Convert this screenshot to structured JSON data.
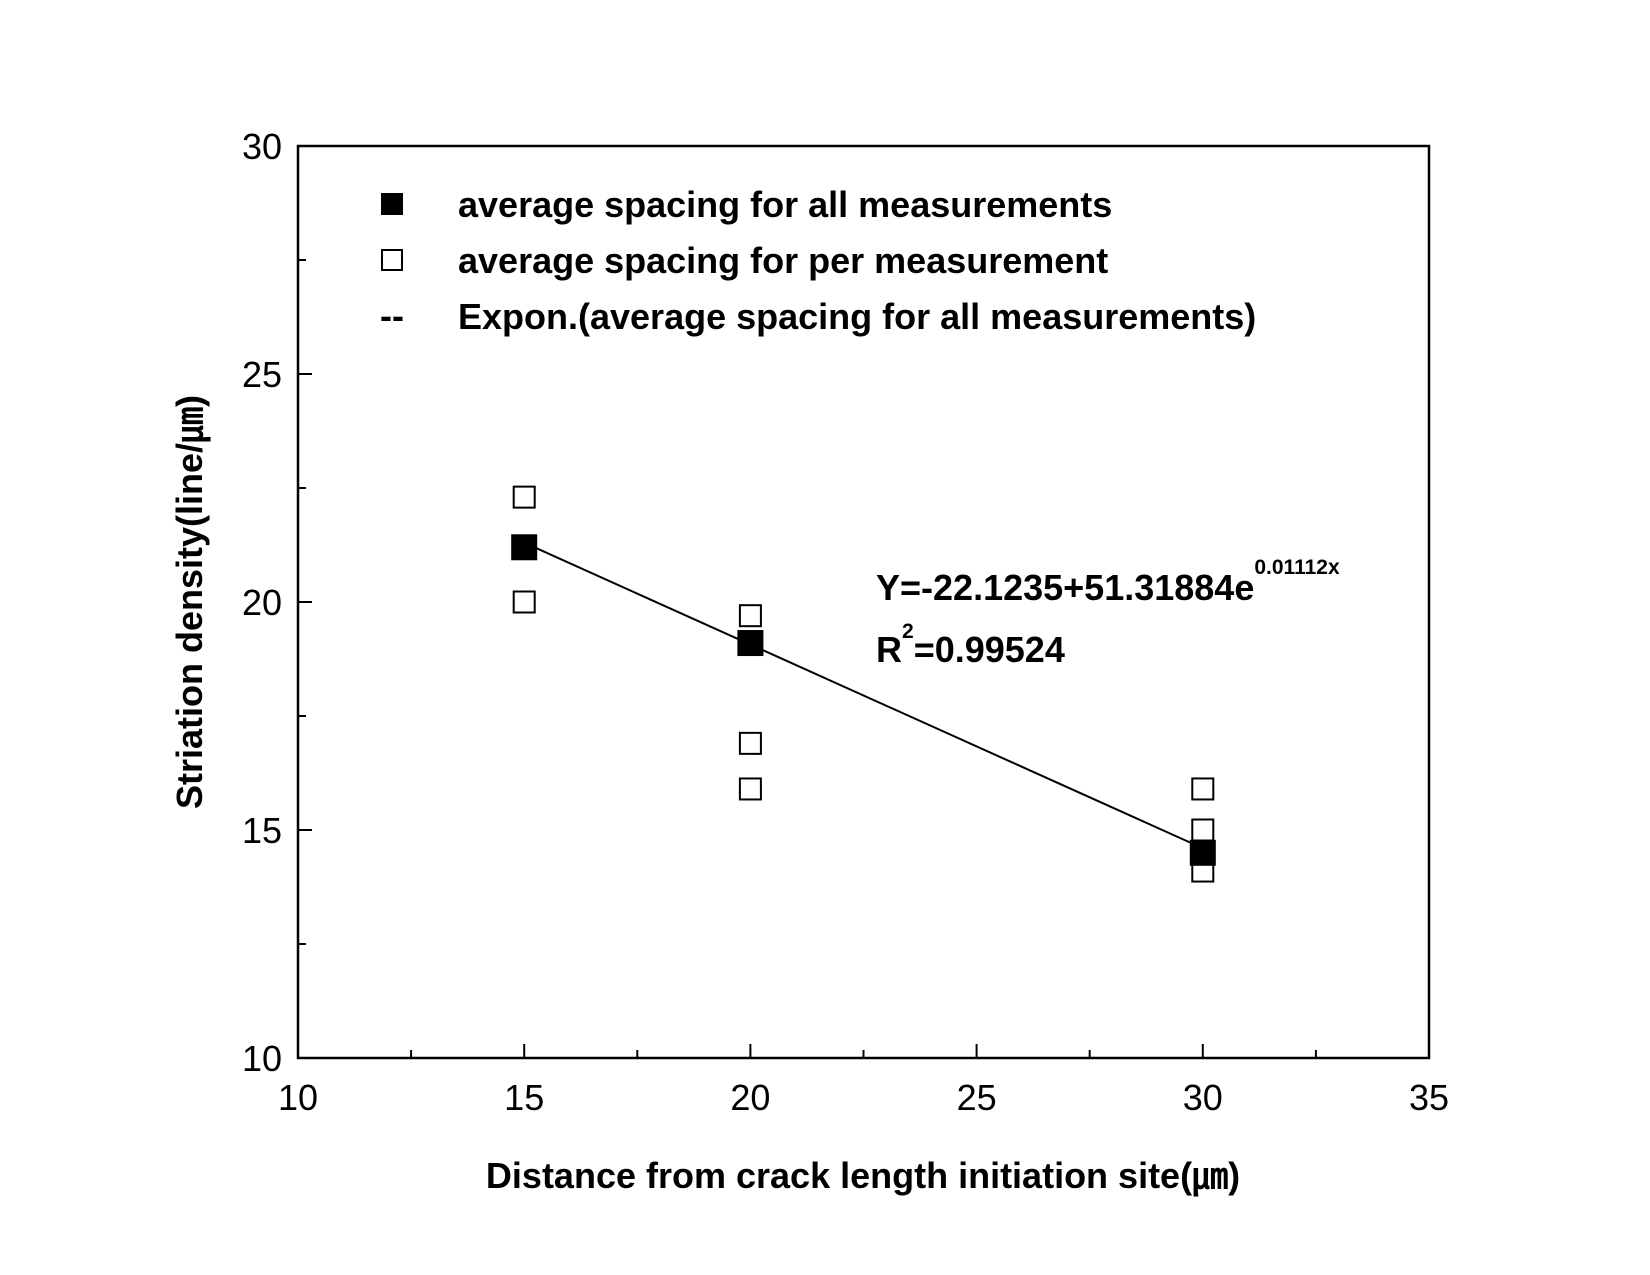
{
  "chart_data": {
    "type": "scatter",
    "xlabel": "Distance from crack length initiation site(㎛)",
    "ylabel": "Striation density(line/㎛)",
    "xlim": [
      10,
      35
    ],
    "xticks": [
      10,
      15,
      20,
      25,
      30,
      35
    ],
    "xminorticks": [
      12.5,
      17.5,
      22.5,
      27.5,
      32.5
    ],
    "ylim": [
      10,
      30
    ],
    "yticks": [
      10,
      15,
      20,
      25,
      30
    ],
    "yminorticks": [
      12.5,
      17.5,
      22.5,
      27.5
    ],
    "legend": "top-left",
    "series": [
      {
        "name": "average spacing for all measurements",
        "marker": "filled-square",
        "color": "#000000",
        "x": [
          15,
          20,
          30
        ],
        "values": [
          21.2,
          19.1,
          14.5
        ]
      },
      {
        "name": "average spacing for per measurement",
        "marker": "open-square",
        "color": "#000000",
        "x": [
          15,
          15,
          20,
          20,
          20,
          30,
          30,
          30
        ],
        "values": [
          22.3,
          20.0,
          19.7,
          16.9,
          15.9,
          15.9,
          15.0,
          14.1
        ]
      },
      {
        "name": "Expon.(average spacing for all measurements)",
        "marker": "line",
        "legend_symbol": "--",
        "color": "#000000",
        "x": [
          15,
          30
        ],
        "values": [
          21.3,
          14.6
        ]
      }
    ],
    "annotations": {
      "equation": "Y=-22.1235+51.31884e",
      "exponent": "0.01112x",
      "r": "R",
      "r_power": "2",
      "r_value": "=0.99524"
    }
  }
}
